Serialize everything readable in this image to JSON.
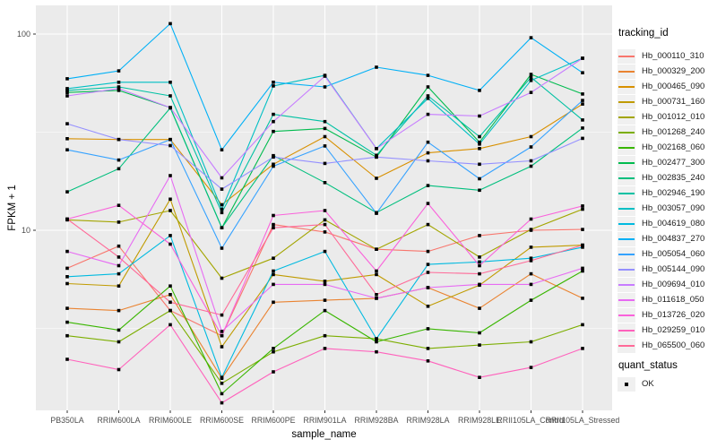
{
  "chart_data": {
    "type": "line",
    "title": "",
    "xlabel": "sample_name",
    "ylabel": "FPKM + 1",
    "y_scale": "log10",
    "ylim": [
      1.2,
      140
    ],
    "grid": true,
    "y_ticks": [
      {
        "label": "100",
        "value": 100
      },
      {
        "label": "10",
        "value": 10
      }
    ],
    "y_minor_values": [
      31.62,
      3.162
    ],
    "categories": [
      "PB350LA",
      "RRIM600LA",
      "RRIM600LE",
      "RRIM600SE",
      "RRIM600PE",
      "RRIM901LA",
      "RRIM928BA",
      "RRIM928LA",
      "RRIM928LE",
      "RRII105LA_Control",
      "RRII105LA_Stressed"
    ],
    "series": [
      {
        "name": "Hb_000110_310",
        "color": "#F8766D",
        "values": [
          6.4,
          8.3,
          3.9,
          2.9,
          10.7,
          9.8,
          8.0,
          7.8,
          9.4,
          10.0,
          10.1
        ]
      },
      {
        "name": "Hb_000329_200",
        "color": "#EA8331",
        "values": [
          4.0,
          3.9,
          4.7,
          1.76,
          4.3,
          4.4,
          4.5,
          5.1,
          4.0,
          6.0,
          4.5
        ]
      },
      {
        "name": "Hb_000465_090",
        "color": "#D89000",
        "values": [
          29.3,
          29.0,
          29.0,
          13.5,
          21.7,
          30.0,
          18.4,
          24.8,
          26.1,
          30.0,
          44.0
        ]
      },
      {
        "name": "Hb_000731_160",
        "color": "#C09B00",
        "values": [
          5.35,
          5.2,
          14.4,
          2.55,
          5.95,
          5.5,
          5.95,
          4.1,
          5.25,
          8.2,
          8.4
        ]
      },
      {
        "name": "Hb_001012_010",
        "color": "#A3A500",
        "values": [
          11.3,
          11.0,
          12.6,
          5.7,
          7.2,
          11.3,
          8.0,
          10.7,
          7.3,
          10.1,
          12.8
        ]
      },
      {
        "name": "Hb_001268_240",
        "color": "#7CAE00",
        "values": [
          2.9,
          2.7,
          3.9,
          1.66,
          2.4,
          2.9,
          2.8,
          2.5,
          2.6,
          2.7,
          3.3
        ]
      },
      {
        "name": "Hb_002168_060",
        "color": "#39B600",
        "values": [
          3.4,
          3.1,
          5.2,
          1.47,
          2.5,
          3.9,
          2.7,
          3.15,
          3.0,
          4.4,
          6.2
        ]
      },
      {
        "name": "Hb_002477_300",
        "color": "#00BB4E",
        "values": [
          50.4,
          51.6,
          42.2,
          10.3,
          31.9,
          33.0,
          23.6,
          53.8,
          28.1,
          62.3,
          49.5
        ]
      },
      {
        "name": "Hb_002835_240",
        "color": "#00BF7D",
        "values": [
          15.7,
          20.6,
          42.0,
          10.3,
          24.0,
          17.5,
          12.3,
          16.9,
          16.0,
          21.2,
          33.2
        ]
      },
      {
        "name": "Hb_002946_190",
        "color": "#00C1A3",
        "values": [
          51.6,
          53.8,
          48.4,
          12.3,
          39.0,
          35.8,
          24.1,
          48.4,
          30.0,
          60.2,
          36.5
        ]
      },
      {
        "name": "Hb_003057_090",
        "color": "#00BFC4",
        "values": [
          52.7,
          56.8,
          56.8,
          12.8,
          54.4,
          61.6,
          26.1,
          47.0,
          27.5,
          58.0,
          75.3
        ]
      },
      {
        "name": "Hb_004619_080",
        "color": "#00BAE0",
        "values": [
          5.8,
          6.0,
          9.4,
          1.78,
          6.2,
          7.8,
          2.8,
          6.7,
          6.9,
          7.2,
          8.2
        ]
      },
      {
        "name": "Hb_004837_270",
        "color": "#00B0F6",
        "values": [
          59.2,
          64.9,
          113.0,
          25.7,
          56.8,
          53.8,
          67.8,
          61.6,
          51.6,
          95.8,
          63.5
        ]
      },
      {
        "name": "Hb_005054_060",
        "color": "#35A2FF",
        "values": [
          25.7,
          22.8,
          29.0,
          8.1,
          21.2,
          26.9,
          12.2,
          28.1,
          18.3,
          26.6,
          45.9
        ]
      },
      {
        "name": "Hb_005144_090",
        "color": "#9590FF",
        "values": [
          34.9,
          29.0,
          27.0,
          16.2,
          23.6,
          21.9,
          23.6,
          22.6,
          21.7,
          22.6,
          29.4
        ]
      },
      {
        "name": "Hb_009694_010",
        "color": "#C77CFF",
        "values": [
          48.4,
          52.7,
          42.2,
          18.5,
          35.8,
          61.0,
          26.1,
          39.0,
          38.2,
          50.4,
          75.3
        ]
      },
      {
        "name": "Hb_011618_050",
        "color": "#E76BF3",
        "values": [
          7.8,
          6.6,
          19.0,
          3.05,
          5.3,
          5.3,
          4.5,
          5.1,
          5.3,
          5.3,
          6.4
        ]
      },
      {
        "name": "Hb_013726_020",
        "color": "#FA62DB",
        "values": [
          11.4,
          13.4,
          8.5,
          2.9,
          11.9,
          12.6,
          6.2,
          13.7,
          6.6,
          11.4,
          13.3
        ]
      },
      {
        "name": "Hb_029259_010",
        "color": "#FF62BC",
        "values": [
          2.2,
          1.95,
          3.3,
          1.32,
          1.9,
          2.5,
          2.4,
          2.16,
          1.78,
          2.0,
          2.5
        ]
      },
      {
        "name": "Hb_065500_060",
        "color": "#FF6A98",
        "values": [
          11.4,
          7.3,
          4.3,
          3.7,
          10.3,
          10.7,
          4.7,
          6.1,
          6.0,
          7.0,
          8.4
        ]
      }
    ],
    "legend": {
      "color_title": "tracking_id",
      "shape_title": "quant_status",
      "shape_label": "OK"
    },
    "point_shape": "filled-square",
    "point_color": "#000000"
  },
  "theme": {
    "panel_bg": "#EBEBEB",
    "grid_color": "#FFFFFF",
    "tick_text_color": "#4D4D4D",
    "tick_mark_color": "#333333",
    "legend_key_bg": "#F0F0F0",
    "outer_bg": "#FFFFFF"
  }
}
